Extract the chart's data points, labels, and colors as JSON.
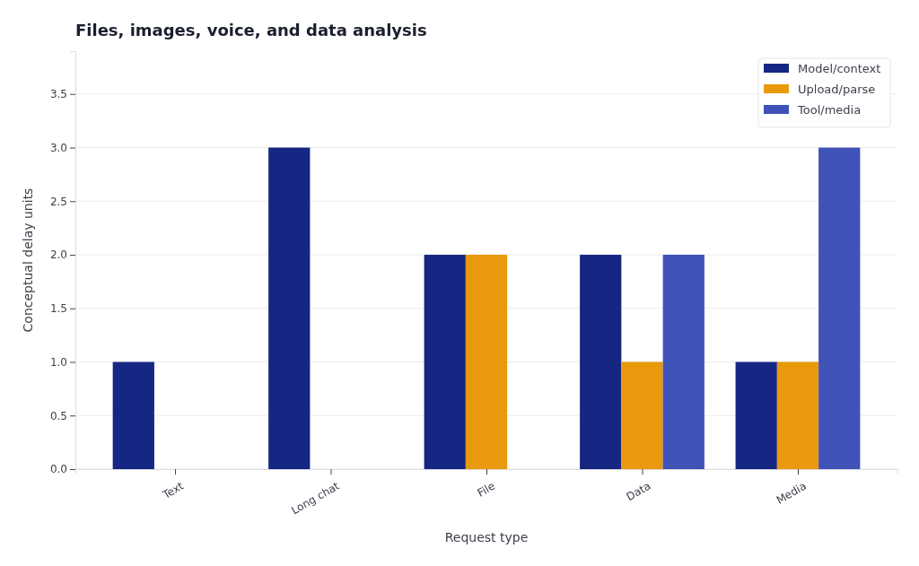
{
  "chart_data": {
    "type": "bar",
    "title": "Files, images, voice, and data analysis",
    "xlabel": "Request type",
    "ylabel": "Conceptual delay units",
    "categories": [
      "Text",
      "Long chat",
      "File",
      "Data",
      "Media"
    ],
    "series": [
      {
        "name": "Model/context",
        "color": "#162783",
        "values": [
          1,
          3,
          2,
          2,
          1
        ]
      },
      {
        "name": "Upload/parse",
        "color": "#e89a0c",
        "values": [
          0,
          0,
          2,
          1,
          1
        ]
      },
      {
        "name": "Tool/media",
        "color": "#3f52b8",
        "values": [
          0,
          0,
          0,
          2,
          3
        ]
      }
    ],
    "ylim": [
      0,
      3.9
    ],
    "yticks": [
      {
        "value": 0,
        "label": "0.0"
      },
      0.5,
      {
        "value": 1,
        "label": "1.0"
      },
      1.5,
      {
        "value": 2,
        "label": "2.0"
      },
      2.5,
      {
        "value": 3,
        "label": "3.0"
      },
      3.5
    ],
    "grid": "y",
    "legend": "top right"
  }
}
